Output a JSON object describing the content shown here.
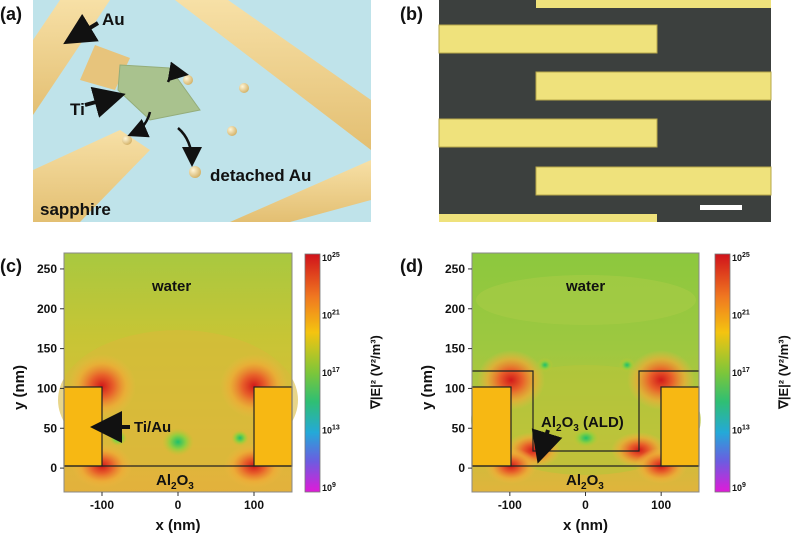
{
  "panels": {
    "a": {
      "label": "(a)",
      "annotations": {
        "au": "Au",
        "ti": "Ti",
        "detached": "detached Au",
        "substrate": "sapphire"
      }
    },
    "b": {
      "label": "(b)",
      "scale_bar": "scale bar"
    },
    "c": {
      "label": "(c)",
      "region_water": "water",
      "region_substrate": "Al2O3",
      "annotation": "Ti/Au",
      "colorbar_label": "∇|E|² (V²/m³)",
      "colorbar_ticks": [
        "10^25",
        "10^21",
        "10^17",
        "10^13",
        "10^9"
      ]
    },
    "d": {
      "label": "(d)",
      "region_water": "water",
      "region_substrate": "Al2O3",
      "annotation": "Al2O3 (ALD)",
      "colorbar_label": "∇|E|² (V²/m³)",
      "colorbar_ticks": [
        "10^25",
        "10^21",
        "10^17",
        "10^13",
        "10^9"
      ]
    }
  },
  "chart_data": [
    {
      "type": "heatmap",
      "panel": "c",
      "xlabel": "x (nm)",
      "ylabel": "y (nm)",
      "xlim": [
        -150,
        150
      ],
      "ylim": [
        -30,
        270
      ],
      "xticks": [
        -100,
        0,
        100
      ],
      "yticks": [
        0,
        50,
        100,
        150,
        200,
        250
      ],
      "colorscale_range": [
        9,
        25
      ]
    },
    {
      "type": "heatmap",
      "panel": "d",
      "xlabel": "x (nm)",
      "ylabel": "y (nm)",
      "xlim": [
        -150,
        150
      ],
      "ylim": [
        -30,
        270
      ],
      "xticks": [
        -100,
        0,
        100
      ],
      "yticks": [
        0,
        50,
        100,
        150,
        200,
        250
      ],
      "colorscale_range": [
        9,
        25
      ]
    }
  ]
}
